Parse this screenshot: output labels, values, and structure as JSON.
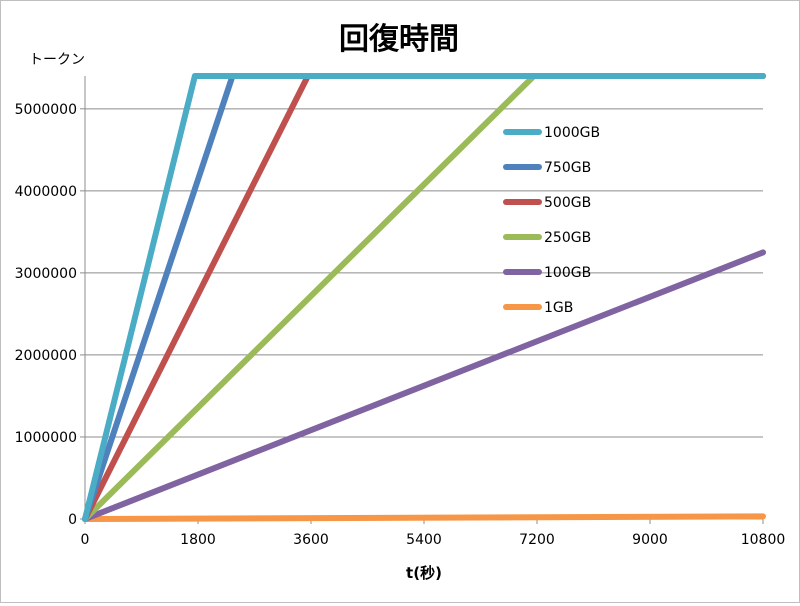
{
  "chart_data": {
    "type": "line",
    "title": "回復時間",
    "xlabel": "t(秒)",
    "ylabel": "トークン",
    "xlim": [
      0,
      10800
    ],
    "ylim": [
      0,
      5400000
    ],
    "x_ticks": [
      0,
      1800,
      3600,
      5400,
      7200,
      9000,
      10800
    ],
    "x_tick_labels": [
      "0",
      "1800",
      "3600",
      "5400",
      "7200",
      "9000",
      "10800"
    ],
    "y_ticks": [
      0,
      1000000,
      2000000,
      3000000,
      4000000,
      5000000
    ],
    "y_tick_labels": [
      "0",
      "1000000",
      "2000000",
      "3000000",
      "4000000",
      "5000000"
    ],
    "grid": "horizontal",
    "legend_position": "right-inside",
    "series": [
      {
        "name": "1000GB",
        "color": "#4bacc6",
        "points": [
          [
            0,
            0
          ],
          [
            1750,
            5400000
          ],
          [
            10800,
            5400000
          ]
        ]
      },
      {
        "name": "750GB",
        "color": "#4f81bd",
        "points": [
          [
            0,
            0
          ],
          [
            2350,
            5400000
          ],
          [
            10800,
            5400000
          ]
        ]
      },
      {
        "name": "500GB",
        "color": "#c0504d",
        "points": [
          [
            0,
            0
          ],
          [
            3550,
            5400000
          ],
          [
            10800,
            5400000
          ]
        ]
      },
      {
        "name": "250GB",
        "color": "#9bbb59",
        "points": [
          [
            0,
            0
          ],
          [
            7150,
            5400000
          ],
          [
            10800,
            5400000
          ]
        ]
      },
      {
        "name": "100GB",
        "color": "#8064a2",
        "points": [
          [
            0,
            0
          ],
          [
            10800,
            3250000
          ]
        ]
      },
      {
        "name": "1GB",
        "color": "#f79646",
        "points": [
          [
            0,
            0
          ],
          [
            10800,
            32000
          ]
        ]
      }
    ]
  }
}
